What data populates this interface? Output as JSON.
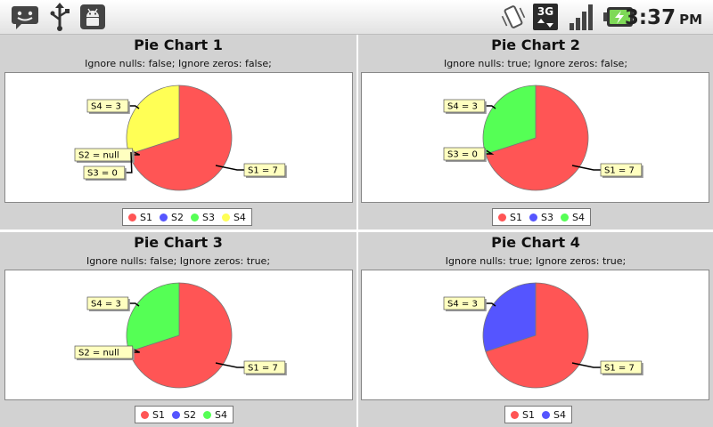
{
  "status_bar": {
    "time": "3:37",
    "ampm": "PM",
    "left_icons": [
      "chat-icon",
      "usb-icon",
      "android-debug-icon"
    ],
    "right_icons": [
      "vibrate-icon",
      "3g-data-icon",
      "signal-icon",
      "battery-charging-icon"
    ],
    "network_label": "3G"
  },
  "colors": {
    "S1": "#ff5555",
    "S2": "#5555ff",
    "S3": "#55ff55",
    "S4": "#ffff55",
    "panel_bg": "#d2d2d2"
  },
  "charts": [
    {
      "title": "Pie Chart 1",
      "subtitle": "Ignore nulls: false; Ignore zeros: false;",
      "labels": [
        "S4 = 3",
        "S2 = null",
        "S3 = 0",
        "S1 = 7"
      ],
      "legend": [
        "S1",
        "S2",
        "S3",
        "S4"
      ]
    },
    {
      "title": "Pie Chart 2",
      "subtitle": "Ignore nulls: true; Ignore zeros: false;",
      "labels": [
        "S4 = 3",
        "S3 = 0",
        "S1 = 7"
      ],
      "legend": [
        "S1",
        "S3",
        "S4"
      ]
    },
    {
      "title": "Pie Chart 3",
      "subtitle": "Ignore nulls: false; Ignore zeros: true;",
      "labels": [
        "S4 = 3",
        "S2 = null",
        "S1 = 7"
      ],
      "legend": [
        "S1",
        "S2",
        "S4"
      ]
    },
    {
      "title": "Pie Chart 4",
      "subtitle": "Ignore nulls: true; Ignore zeros: true;",
      "labels": [
        "S4 = 3",
        "S1 = 7"
      ],
      "legend": [
        "S1",
        "S4"
      ]
    }
  ],
  "chart_data": [
    {
      "type": "pie",
      "title": "Pie Chart 1",
      "subtitle": "Ignore nulls: false; Ignore zeros: false;",
      "slices": [
        {
          "name": "S1",
          "value": 7,
          "color": "#ff5555"
        },
        {
          "name": "S2",
          "value": null,
          "color": "#5555ff"
        },
        {
          "name": "S3",
          "value": 0,
          "color": "#55ff55"
        },
        {
          "name": "S4",
          "value": 3,
          "color": "#ffff55"
        }
      ],
      "legend_position": "bottom"
    },
    {
      "type": "pie",
      "title": "Pie Chart 2",
      "subtitle": "Ignore nulls: true; Ignore zeros: false;",
      "slices": [
        {
          "name": "S1",
          "value": 7,
          "color": "#ff5555"
        },
        {
          "name": "S3",
          "value": 0,
          "color": "#5555ff"
        },
        {
          "name": "S4",
          "value": 3,
          "color": "#55ff55"
        }
      ],
      "legend_position": "bottom"
    },
    {
      "type": "pie",
      "title": "Pie Chart 3",
      "subtitle": "Ignore nulls: false; Ignore zeros: true;",
      "slices": [
        {
          "name": "S1",
          "value": 7,
          "color": "#ff5555"
        },
        {
          "name": "S2",
          "value": null,
          "color": "#5555ff"
        },
        {
          "name": "S4",
          "value": 3,
          "color": "#55ff55"
        }
      ],
      "legend_position": "bottom"
    },
    {
      "type": "pie",
      "title": "Pie Chart 4",
      "subtitle": "Ignore nulls: true; Ignore zeros: true;",
      "slices": [
        {
          "name": "S1",
          "value": 7,
          "color": "#ff5555"
        },
        {
          "name": "S4",
          "value": 3,
          "color": "#5555ff"
        }
      ],
      "legend_position": "bottom"
    }
  ]
}
